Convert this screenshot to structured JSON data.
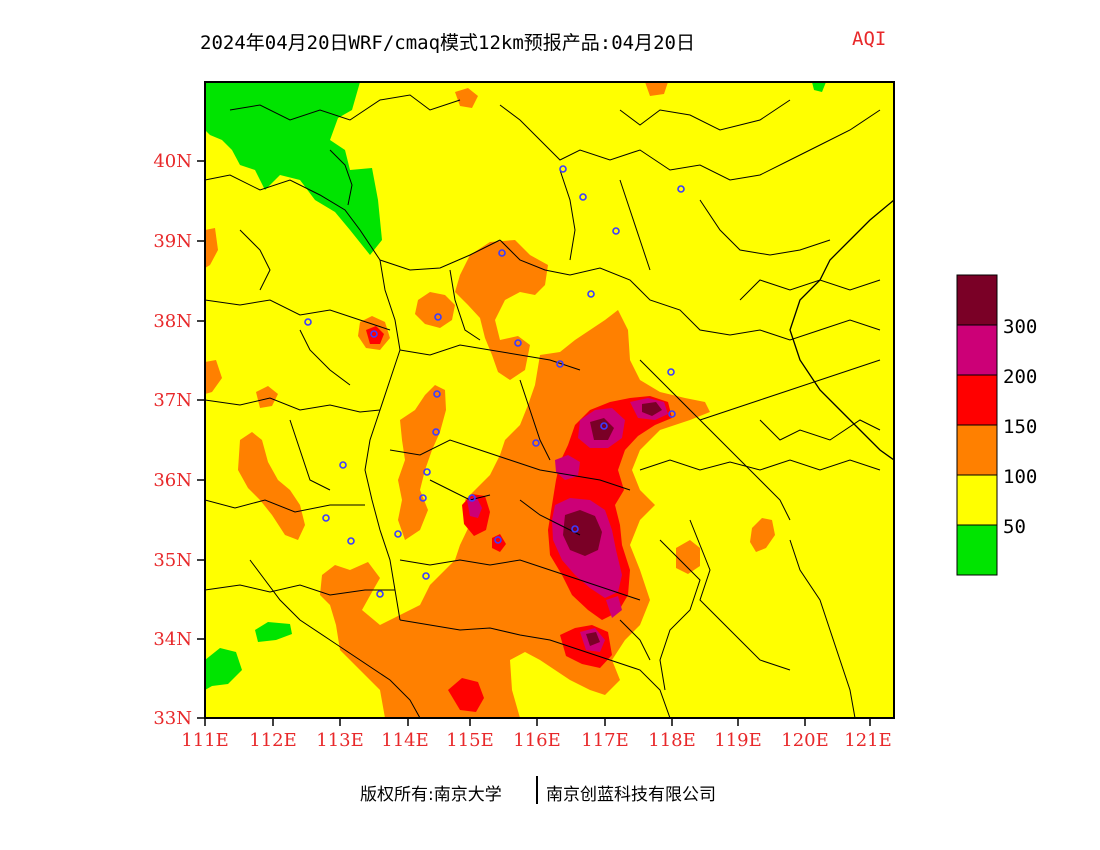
{
  "title": {
    "main": "2024年04月20日WRF/cmaq模式12km预报产品:04月20日",
    "variable": "AQI"
  },
  "map": {
    "lat_ticks": [
      "40N",
      "39N",
      "38N",
      "37N",
      "36N",
      "35N",
      "34N",
      "33N"
    ],
    "lon_ticks": [
      "111E",
      "112E",
      "113E",
      "114E",
      "115E",
      "116E",
      "117E",
      "118E",
      "119E",
      "120E",
      "121E"
    ],
    "tick_color": "#e8282a"
  },
  "legend": {
    "labels": [
      "300",
      "200",
      "150",
      "100",
      "50"
    ],
    "bins": [
      {
        "color": "#7a0026"
      },
      {
        "color": "#cc0077"
      },
      {
        "color": "#ff0000"
      },
      {
        "color": "#ff8000"
      },
      {
        "color": "#ffff00"
      },
      {
        "color": "#00e400"
      }
    ]
  },
  "footer": {
    "copyright": "版权所有:南京大学",
    "company": "南京创蓝科技有限公司"
  },
  "colors": {
    "good": "#00e400",
    "moderate": "#ffff00",
    "usg": "#ff8000",
    "unhealthy": "#ff0000",
    "very_unhealthy": "#cc0077",
    "hazardous": "#7a0026",
    "station_marker": "#3c3cff"
  }
}
